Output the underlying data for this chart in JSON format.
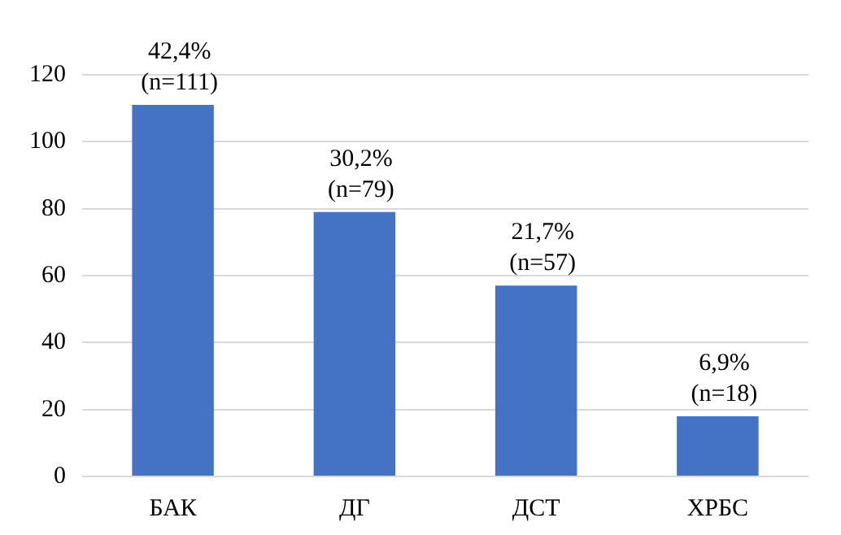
{
  "chart_data": {
    "type": "bar",
    "categories": [
      "БАК",
      "ДГ",
      "ДСТ",
      "ХРБС"
    ],
    "values": [
      111,
      79,
      57,
      18
    ],
    "color": "#4472c4",
    "value_labels": [
      "42,4%\n(n=111)",
      "30,2%\n(n=79)",
      "21,7%\n(n=57)",
      "6,9%\n(n=18)"
    ],
    "ylim": [
      0,
      120
    ],
    "yticks": [
      0,
      20,
      40,
      60,
      80,
      100,
      120
    ],
    "grid": "y",
    "legend": false
  }
}
